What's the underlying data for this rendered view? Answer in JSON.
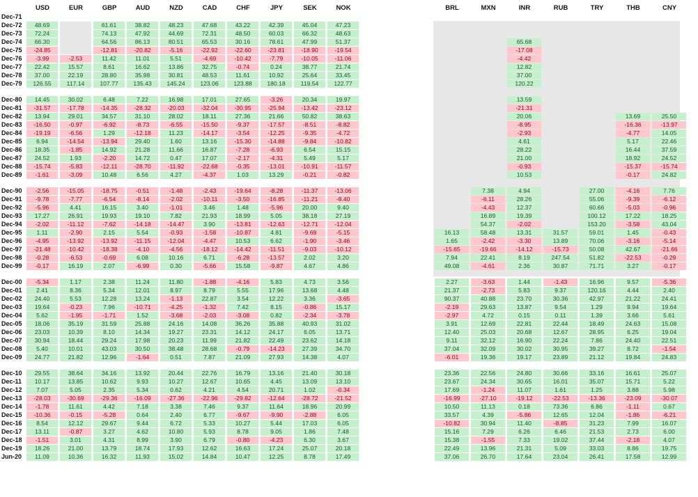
{
  "colors": {
    "positive_bg": "#c6efce",
    "positive_text": "#14591f",
    "negative_bg": "#ffc7ce",
    "negative_text": "#9c0006",
    "missing": "#e7e7e7"
  },
  "headers": [
    "USD",
    "EUR",
    "GBP",
    "AUD",
    "NZD",
    "CAD",
    "CHF",
    "JPY",
    "SEK",
    "NOK",
    "BRL",
    "MXN",
    "INR",
    "RUB",
    "TRY",
    "THB",
    "CNY"
  ],
  "rows": [
    {
      "label": "Dec-71",
      "values": [
        null,
        null,
        null,
        null,
        null,
        null,
        null,
        null,
        null,
        null,
        null,
        null,
        null,
        null,
        null,
        null,
        null
      ]
    },
    {
      "label": "Dec-72",
      "values": [
        "48.69",
        null,
        "61.61",
        "38.82",
        "48.23",
        "47.68",
        "43.22",
        "42.39",
        "45.04",
        "47.23",
        null,
        null,
        null,
        null,
        null,
        null,
        null
      ]
    },
    {
      "label": "Dec-73",
      "values": [
        "72.24",
        null,
        "74.13",
        "47.92",
        "44.69",
        "72.31",
        "48.50",
        "60.03",
        "66.32",
        "48.63",
        null,
        null,
        null,
        null,
        null,
        null,
        null
      ]
    },
    {
      "label": "Dec-74",
      "values": [
        "66.30",
        null,
        "64.56",
        "86.13",
        "80.51",
        "65.53",
        "30.16",
        "78.61",
        "47.99",
        "51.37",
        null,
        null,
        "65.68",
        null,
        null,
        null,
        null
      ]
    },
    {
      "label": "Dec-75",
      "values": [
        "-24.85",
        null,
        "-12.81",
        "-20.82",
        "-5.16",
        "-22.92",
        "-22.60",
        "-23.81",
        "-18.90",
        "-19.54",
        null,
        null,
        "-17.08",
        null,
        null,
        null,
        null
      ]
    },
    {
      "label": "Dec-76",
      "values": [
        "-3.99",
        "-2.53",
        "11.42",
        "11.01",
        "5.51",
        "-4.69",
        "-10.42",
        "-7.79",
        "-10.05",
        "-11.06",
        null,
        null,
        "-4.42",
        null,
        null,
        null,
        null
      ]
    },
    {
      "label": "Dec-77",
      "values": [
        "22.42",
        "15.57",
        "8.61",
        "16.62",
        "13.86",
        "32.75",
        "-0.74",
        "0.24",
        "38.77",
        "21.74",
        null,
        null,
        "12.82",
        null,
        null,
        null,
        null
      ]
    },
    {
      "label": "Dec-78",
      "values": [
        "37.00",
        "22.19",
        "28.80",
        "35.98",
        "30.81",
        "48.53",
        "11.61",
        "10.92",
        "25.64",
        "33.45",
        null,
        null,
        "37.00",
        null,
        null,
        null,
        null
      ]
    },
    {
      "label": "Dec-79",
      "values": [
        "126.55",
        "117.14",
        "107.77",
        "135.43",
        "145.24",
        "123.06",
        "123.88",
        "180.18",
        "119.54",
        "122.77",
        null,
        null,
        "120.22",
        null,
        null,
        null,
        null
      ]
    },
    {
      "label": "Dec-80",
      "values": [
        "14.45",
        "30.02",
        "6.48",
        "7.22",
        "16.98",
        "17.01",
        "27.65",
        "-3.26",
        "20.34",
        "19.97",
        null,
        null,
        "13.59",
        null,
        null,
        null,
        null
      ]
    },
    {
      "label": "Dec-81",
      "values": [
        "-31.57",
        "-17.78",
        "-14.35",
        "-28.32",
        "-20.03",
        "-32.04",
        "-30.95",
        "-25.94",
        "-13.42",
        "-23.12",
        null,
        null,
        "-21.31",
        null,
        null,
        null,
        null
      ]
    },
    {
      "label": "Dec-82",
      "values": [
        "13.94",
        "29.01",
        "34.57",
        "31.10",
        "28.02",
        "18.11",
        "27.36",
        "21.66",
        "50.82",
        "38.63",
        null,
        null,
        "20.06",
        null,
        null,
        "13.69",
        "25.50"
      ]
    },
    {
      "label": "Dec-83",
      "values": [
        "-16.50",
        "-0.97",
        "-6.92",
        "-8.73",
        "-6.55",
        "-15.50",
        "-9.37",
        "-17.57",
        "-8.51",
        "-8.82",
        null,
        null,
        "-8.95",
        null,
        null,
        "-16.36",
        "-13.97"
      ]
    },
    {
      "label": "Dec-84",
      "values": [
        "-19.19",
        "-6.56",
        "1.29",
        "-12.18",
        "11.23",
        "-14.17",
        "-3.54",
        "-12.25",
        "-9.35",
        "-4.72",
        null,
        null,
        "-2.93",
        null,
        null,
        "-4.77",
        "14.05"
      ]
    },
    {
      "label": "Dec-85",
      "values": [
        "6.94",
        "-14.54",
        "-13.94",
        "29.40",
        "1.60",
        "13.16",
        "-15.30",
        "-14.88",
        "-9.84",
        "-10.82",
        null,
        null,
        "4.61",
        null,
        null,
        "5.17",
        "22.46"
      ]
    },
    {
      "label": "Dec-86",
      "values": [
        "18.35",
        "-1.85",
        "14.92",
        "21.28",
        "11.66",
        "16.87",
        "-7.28",
        "-6.93",
        "6.54",
        "15.15",
        null,
        null,
        "28.22",
        null,
        null,
        "16.44",
        "37.59"
      ]
    },
    {
      "label": "Dec-87",
      "values": [
        "24.52",
        "1.93",
        "-2.20",
        "14.72",
        "0.47",
        "17.07",
        "-2.17",
        "-4.31",
        "5.49",
        "5.17",
        null,
        null,
        "21.00",
        null,
        null,
        "18.92",
        "24.52"
      ]
    },
    {
      "label": "Dec-88",
      "values": [
        "-15.74",
        "-5.83",
        "-12.11",
        "-28.70",
        "-11.92",
        "-22.68",
        "-0.35",
        "-13.01",
        "-10.91",
        "-11.57",
        null,
        null,
        "-0.93",
        null,
        null,
        "-15.37",
        "-15.74"
      ]
    },
    {
      "label": "Dec-89",
      "values": [
        "-1.61",
        "-3.09",
        "10.48",
        "6.56",
        "4.27",
        "-4.37",
        "1.03",
        "13.29",
        "-0.21",
        "-0.82",
        null,
        null,
        "10.53",
        null,
        null,
        "-0.17",
        "24.82"
      ]
    },
    {
      "label": "Dec-90",
      "values": [
        "-2.56",
        "-15.05",
        "-18.75",
        "-0.51",
        "-1.48",
        "-2.43",
        "-19.64",
        "-8.28",
        "-11.37",
        "-13.06",
        null,
        "7.38",
        "4.94",
        null,
        "27.00",
        "-4.16",
        "7.76"
      ]
    },
    {
      "label": "Dec-91",
      "values": [
        "-9.78",
        "-7.77",
        "-6.54",
        "-8.14",
        "-2.02",
        "-10.11",
        "-3.50",
        "-16.85",
        "-11.21",
        "-8.40",
        null,
        "-6.11",
        "28.26",
        null,
        "55.06",
        "-9.39",
        "-6.12"
      ]
    },
    {
      "label": "Dec-92",
      "values": [
        "-5.96",
        "4.41",
        "16.15",
        "3.40",
        "-1.01",
        "3.46",
        "1.48",
        "-5.96",
        "20.00",
        "9.40",
        null,
        "-4.43",
        "12.37",
        null,
        "60.66",
        "-5.03",
        "-0.96"
      ]
    },
    {
      "label": "Dec-93",
      "values": [
        "17.27",
        "26.91",
        "19.93",
        "19.10",
        "7.82",
        "21.93",
        "18.99",
        "5.05",
        "38.18",
        "27.19",
        null,
        "16.89",
        "19.39",
        null,
        "100.12",
        "17.22",
        "18.25"
      ]
    },
    {
      "label": "Dec-94",
      "values": [
        "-2.02",
        "-11.12",
        "-7.62",
        "-14.18",
        "-14.47",
        "3.90",
        "-13.81",
        "-12.63",
        "-12.71",
        "-12.04",
        null,
        "54.37",
        "-2.02",
        null,
        "153.20",
        "-3.58",
        "43.04"
      ]
    },
    {
      "label": "Dec-95",
      "values": [
        "1.11",
        "-2.90",
        "2.15",
        "5.54",
        "-0.93",
        "-1.58",
        "-10.87",
        "4.81",
        "-9.69",
        "-5.15",
        "16.13",
        "58.48",
        "13.31",
        "31.57",
        "59.01",
        "1.45",
        "-0.43"
      ]
    },
    {
      "label": "Dec-96",
      "values": [
        "-4.95",
        "-13.92",
        "-13.92",
        "-11.15",
        "-12.04",
        "-4.47",
        "10.53",
        "6.62",
        "-1.90",
        "-3.46",
        "1.65",
        "-2.42",
        "-3.30",
        "13.89",
        "70.06",
        "-3.16",
        "-5.14"
      ]
    },
    {
      "label": "Dec-97",
      "values": [
        "-21.48",
        "-10.42",
        "-18.38",
        "-4.10",
        "-4.56",
        "-18.12",
        "-14.42",
        "-11.51",
        "-9.03",
        "-10.12",
        "-15.65",
        "-19.66",
        "-14.12",
        "-15.73",
        "50.08",
        "42.67",
        "-21.66"
      ]
    },
    {
      "label": "Dec-98",
      "values": [
        "-0.28",
        "-6.53",
        "-0.69",
        "6.08",
        "10.16",
        "6.71",
        "-6.28",
        "-13.57",
        "2.02",
        "3.20",
        "7.94",
        "22.41",
        "8.19",
        "247.54",
        "51.82",
        "-22.53",
        "-0.29"
      ]
    },
    {
      "label": "Dec-99",
      "values": [
        "-0.17",
        "16.19",
        "2.07",
        "-6.99",
        "0.30",
        "-5.66",
        "15.58",
        "-9.87",
        "4.67",
        "4.86",
        "49.08",
        "-4.61",
        "2.36",
        "30.87",
        "71.71",
        "3.27",
        "-0.17"
      ]
    },
    {
      "label": "Dec-00",
      "values": [
        "-5.34",
        "1.17",
        "2.38",
        "11.24",
        "11.80",
        "-1.88",
        "-4.16",
        "5.83",
        "4.73",
        "3.56",
        "2.27",
        "-3.63",
        "1.44",
        "-1.43",
        "16.96",
        "9.57",
        "-5.36"
      ]
    },
    {
      "label": "Dec-01",
      "values": [
        "2.41",
        "8.36",
        "5.34",
        "12.01",
        "8.97",
        "8.79",
        "5.55",
        "17.96",
        "13.68",
        "4.48",
        "21.37",
        "-2.73",
        "5.83",
        "9.37",
        "120.16",
        "4.44",
        "2.40"
      ]
    },
    {
      "label": "Dec-02",
      "values": [
        "24.40",
        "5.53",
        "12.28",
        "13.24",
        "-1.13",
        "22.87",
        "3.54",
        "12.22",
        "3.36",
        "-3.65",
        "90.37",
        "40.88",
        "23.70",
        "30.36",
        "42.97",
        "21.22",
        "24.41"
      ]
    },
    {
      "label": "Dec-03",
      "values": [
        "19.64",
        "-0.23",
        "7.96",
        "-10.71",
        "-4.25",
        "-1.32",
        "7.42",
        "8.15",
        "-0.86",
        "15.17",
        "-2.19",
        "29.63",
        "13.87",
        "9.54",
        "1.29",
        "9.94",
        "19.64"
      ]
    },
    {
      "label": "Dec-04",
      "values": [
        "5.62",
        "-1.95",
        "-1.71",
        "1.52",
        "-3.68",
        "-2.03",
        "-3.08",
        "0.82",
        "-2.34",
        "-3.78",
        "-2.97",
        "4.72",
        "0.15",
        "0.11",
        "1.39",
        "3.66",
        "5.61"
      ]
    },
    {
      "label": "Dec-05",
      "values": [
        "18.06",
        "35.19",
        "31.59",
        "25.88",
        "24.16",
        "14.08",
        "36.26",
        "35.88",
        "40.93",
        "31.02",
        "3.91",
        "12.69",
        "22.81",
        "22.44",
        "18.49",
        "24.63",
        "15.08"
      ]
    },
    {
      "label": "Dec-06",
      "values": [
        "23.03",
        "10.39",
        "8.10",
        "14.34",
        "19.27",
        "23.31",
        "14.12",
        "24.17",
        "6.05",
        "13.71",
        "12.40",
        "25.03",
        "20.68",
        "12.67",
        "28.95",
        "6.25",
        "19.04"
      ]
    },
    {
      "label": "Dec-07",
      "values": [
        "30.94",
        "18.44",
        "29.24",
        "17.98",
        "20.23",
        "11.99",
        "21.82",
        "22.49",
        "23.62",
        "14.18",
        "9.11",
        "32.12",
        "16.90",
        "22.24",
        "7.86",
        "24.40",
        "22.51"
      ]
    },
    {
      "label": "Dec-08",
      "values": [
        "5.40",
        "10.01",
        "43.03",
        "30.50",
        "38.48",
        "28.68",
        "-0.79",
        "-14.23",
        "27.39",
        "34.70",
        "37.04",
        "32.09",
        "30.02",
        "30.95",
        "39.27",
        "8.72",
        "-1.54"
      ]
    },
    {
      "label": "Dec-09",
      "values": [
        "24.77",
        "21.82",
        "12.96",
        "-1.64",
        "0.51",
        "7.87",
        "21.09",
        "27.93",
        "14.38",
        "4.07",
        "-6.01",
        "19.36",
        "19.17",
        "23.89",
        "21.12",
        "19.84",
        "24.83"
      ]
    },
    {
      "label": "Dec-10",
      "values": [
        "29.55",
        "38.64",
        "34.16",
        "13.92",
        "20.44",
        "22.76",
        "16.79",
        "13.16",
        "21.40",
        "30.18",
        "23.36",
        "22.56",
        "24.80",
        "30.66",
        "33.16",
        "16.61",
        "25.07"
      ]
    },
    {
      "label": "Dec-11",
      "values": [
        "10.17",
        "13.85",
        "10.62",
        "9.93",
        "10.27",
        "12.67",
        "10.65",
        "4.45",
        "13.09",
        "13.10",
        "23.67",
        "24.34",
        "30.65",
        "16.01",
        "35.07",
        "15.71",
        "5.22"
      ]
    },
    {
      "label": "Dec-12",
      "values": [
        "7.07",
        "5.05",
        "2.35",
        "5.34",
        "0.62",
        "4.21",
        "4.54",
        "20.71",
        "1.02",
        "-0.34",
        "17.69",
        "-1.24",
        "11.07",
        "1.61",
        "1.25",
        "3.88",
        "5.98"
      ]
    },
    {
      "label": "Dec-13",
      "values": [
        "-28.03",
        "-30.69",
        "-29.36",
        "-16.09",
        "-27.36",
        "-22.96",
        "-29.82",
        "-12.64",
        "-28.72",
        "-21.52",
        "-16.99",
        "-27.10",
        "-19.12",
        "-22.53",
        "-13.36",
        "-23.09",
        "-30.07"
      ]
    },
    {
      "label": "Dec-14",
      "values": [
        "-1.78",
        "11.61",
        "4.42",
        "7.18",
        "3.38",
        "7.46",
        "9.37",
        "11.64",
        "18.96",
        "20.99",
        "10.50",
        "11.13",
        "0.18",
        "73.36",
        "6.86",
        "-1.11",
        "0.67"
      ]
    },
    {
      "label": "Dec-15",
      "values": [
        "-10.36",
        "-0.15",
        "-5.28",
        "0.64",
        "2.40",
        "6.77",
        "-9.67",
        "-9.90",
        "-2.88",
        "6.05",
        "33.57",
        "4.39",
        "-5.86",
        "12.65",
        "12.04",
        "-1.86",
        "-6.21"
      ]
    },
    {
      "label": "Dec-16",
      "values": [
        "8.54",
        "12.12",
        "29.67",
        "9.44",
        "6.72",
        "5.33",
        "10.27",
        "5.44",
        "17.03",
        "6.05",
        "-10.82",
        "30.94",
        "11.40",
        "-8.85",
        "31.23",
        "7.99",
        "16.07"
      ]
    },
    {
      "label": "Dec-17",
      "values": [
        "13.11",
        "-0.87",
        "3.27",
        "4.62",
        "10.80",
        "5.93",
        "8.78",
        "9.05",
        "1.86",
        "7.48",
        "15.16",
        "7.29",
        "6.26",
        "6.46",
        "21.53",
        "2.73",
        "6.00"
      ]
    },
    {
      "label": "Dec-18",
      "values": [
        "-1.51",
        "3.01",
        "4.31",
        "8.99",
        "3.90",
        "6.79",
        "-0.80",
        "-4.23",
        "6.30",
        "3.67",
        "15.38",
        "-1.55",
        "7.33",
        "19.02",
        "37.44",
        "-2.18",
        "4.07"
      ]
    },
    {
      "label": "Dec-19",
      "values": [
        "18.26",
        "21.00",
        "13.79",
        "18.74",
        "17.93",
        "12.62",
        "16.63",
        "17.24",
        "25.07",
        "20.18",
        "22.49",
        "13.96",
        "21.31",
        "5.09",
        "33.03",
        "8.86",
        "19.75"
      ]
    },
    {
      "label": "Jun-20",
      "values": [
        "11.09",
        "10.36",
        "16.32",
        "11.93",
        "15.02",
        "14.84",
        "10.47",
        "12.25",
        "8.78",
        "17.49",
        "37.06",
        "26.70",
        "17.64",
        "23.04",
        "26.41",
        "17.58",
        "12.99"
      ]
    }
  ]
}
